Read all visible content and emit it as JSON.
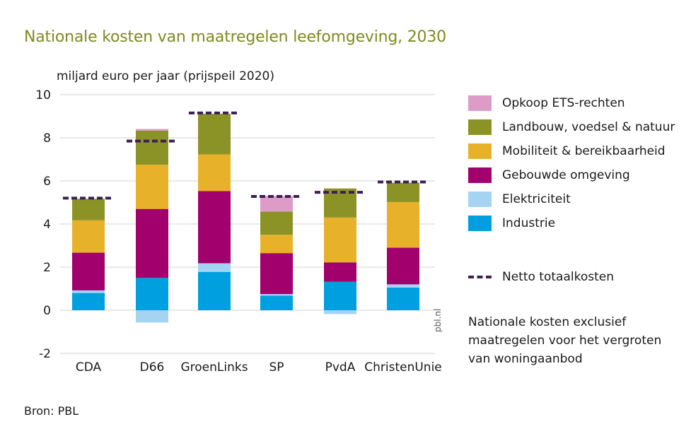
{
  "title": "Nationale kosten van maatregelen leefomgeving, 2030",
  "ylabel": "miljard euro per jaar (prijspeil 2020)",
  "source": "Bron: PBL",
  "watermark": "pbl.nl",
  "note": "Nationale kosten exclusief maatregelen voor het vergroten van woningaanbod",
  "colors": {
    "opkoop": "#dc9cc7",
    "landbouw": "#8c9326",
    "mobiliteit": "#e8b12a",
    "gebouwde": "#a2006d",
    "elektriciteit": "#a5d4f2",
    "industrie": "#009fe0",
    "netto": "#3d1f55",
    "title": "#7f8a1f"
  },
  "legend": {
    "items": [
      {
        "label": "Opkoop ETS-rechten",
        "color": "#dc9cc7"
      },
      {
        "label": "Landbouw, voedsel & natuur",
        "color": "#8c9326"
      },
      {
        "label": "Mobiliteit & bereikbaarheid",
        "color": "#e8b12a"
      },
      {
        "label": "Gebouwde omgeving",
        "color": "#a2006d"
      },
      {
        "label": "Elektriciteit",
        "color": "#a5d4f2"
      },
      {
        "label": "Industrie",
        "color": "#009fe0"
      }
    ],
    "netto_label": "Netto totaalkosten"
  },
  "chart_data": {
    "type": "bar",
    "stacked": true,
    "categories": [
      "CDA",
      "D66",
      "GroenLinks",
      "SP",
      "PvdA",
      "ChristenUnie"
    ],
    "series": [
      {
        "name": "Industrie",
        "color": "#009fe0",
        "values": [
          0.8,
          1.5,
          1.78,
          0.68,
          1.32,
          1.05
        ]
      },
      {
        "name": "Elektriciteit",
        "color": "#a5d4f2",
        "values": [
          0.12,
          -0.57,
          0.4,
          0.07,
          -0.18,
          0.15
        ]
      },
      {
        "name": "Gebouwde omgeving",
        "color": "#a2006d",
        "values": [
          1.75,
          3.2,
          3.35,
          1.9,
          0.9,
          1.7
        ]
      },
      {
        "name": "Mobiliteit & bereikbaarheid",
        "color": "#e8b12a",
        "values": [
          1.5,
          2.05,
          1.7,
          0.85,
          2.08,
          2.12
        ]
      },
      {
        "name": "Landbouw, voedsel & natuur",
        "color": "#8c9326",
        "values": [
          1.0,
          1.58,
          1.88,
          1.08,
          1.35,
          0.9
        ]
      },
      {
        "name": "Opkoop ETS-rechten",
        "color": "#dc9cc7",
        "values": [
          0,
          0.08,
          0,
          0.72,
          0,
          0
        ]
      }
    ],
    "netto_totaalkosten": [
      5.2,
      7.85,
      9.15,
      5.28,
      5.47,
      5.95
    ],
    "ylim": [
      -2,
      10
    ],
    "yticks": [
      -2,
      0,
      2,
      4,
      6,
      8,
      10
    ],
    "grid": true,
    "legend_position": "right"
  }
}
